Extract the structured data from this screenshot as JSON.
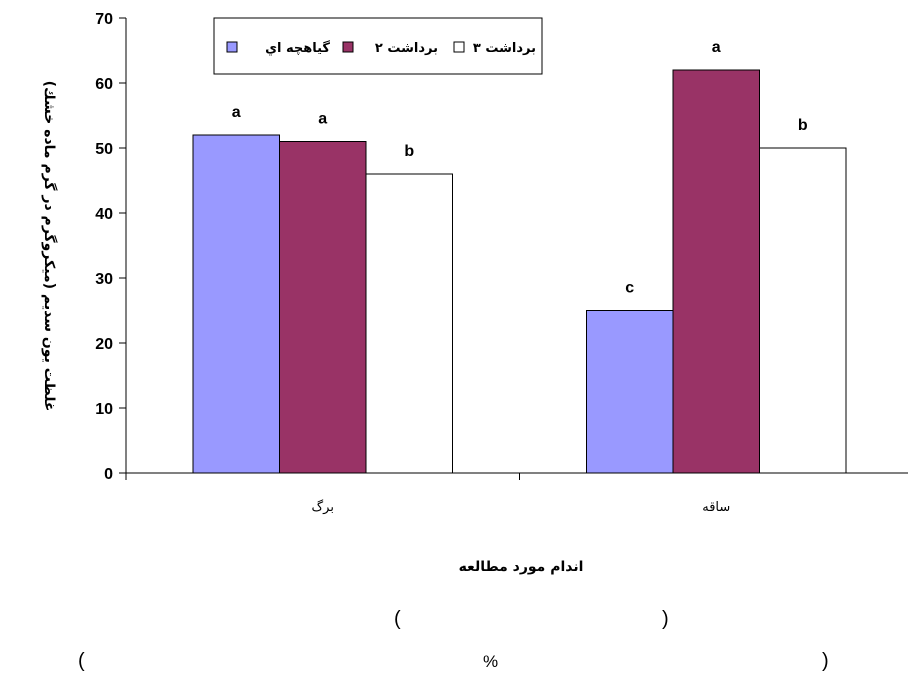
{
  "chart_data": {
    "type": "bar",
    "categories": [
      "برگ",
      "ساقه"
    ],
    "series": [
      {
        "name": "گیاهچه اي",
        "values": [
          52,
          25
        ],
        "color": "#9999FF",
        "sig": [
          "a",
          "c"
        ]
      },
      {
        "name": "برداشت ۲",
        "values": [
          51,
          62
        ],
        "color": "#993366",
        "sig": [
          "a",
          "a"
        ]
      },
      {
        "name": "برداشت ۳",
        "values": [
          46,
          50
        ],
        "color": "#FFFFFF",
        "sig": [
          "b",
          "b"
        ]
      }
    ],
    "xlabel": "اندام مورد مطالعه",
    "ylabel": "غلظت يون سديم (ميكروگرم در گرم ماده خشك)",
    "ylim": [
      0,
      70
    ],
    "yticks": [
      0,
      10,
      20,
      30,
      40,
      50,
      60,
      70
    ],
    "grid": false,
    "legend_position": "top"
  },
  "footer": {
    "line1_left": "(",
    "line1_right": ")",
    "line2_left": "(",
    "line2_mid": "%",
    "line2_right": ")"
  }
}
